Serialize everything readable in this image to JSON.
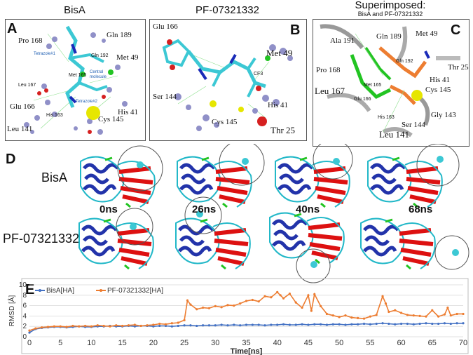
{
  "panels": {
    "A": {
      "letter": "A",
      "title": "BisA"
    },
    "B": {
      "letter": "B",
      "title": "PF-07321332"
    },
    "C": {
      "letter": "C",
      "title_line1": "Superimposed:",
      "title_line2": "BisA and PF-07321332"
    },
    "D": {
      "letter": "D",
      "row1": "BisA",
      "row2": "PF-07321332",
      "times": [
        "0ns",
        "26ns",
        "40ns",
        "68ns"
      ]
    },
    "E": {
      "letter": "E"
    }
  },
  "residues_A": [
    "Pro 168",
    "Gln 189",
    "Gln 192",
    "Leu 167",
    "Met 165",
    "Met 49",
    "Glu 166",
    "His 41",
    "His 163",
    "Cys 145",
    "Leu 141"
  ],
  "residues_A_extra": [
    "Tetrazole#1",
    "Central molecule",
    "Tetrazole#2"
  ],
  "residues_B": [
    "Glu 166",
    "Met 49",
    "Ser 144",
    "His 41",
    "Cys 145",
    "Thr 25",
    "CF3"
  ],
  "residues_C": [
    "Ala 191",
    "Gln 189",
    "Met 49",
    "Gln 192",
    "Pro 168",
    "Thr 25",
    "His 41",
    "Leu 167",
    "Met 165",
    "Glu 166",
    "Cys 145",
    "His 163",
    "Gly 143",
    "Ser 144",
    "Leu 141"
  ],
  "colors": {
    "bisa": "#4472c4",
    "pf": "#ed7d31",
    "grid": "#d9d9d9",
    "ligand": "#3cc8d4",
    "helix": "#2233aa",
    "sheet": "#dd1111",
    "loop": "#22b8c8"
  },
  "chart_data": {
    "type": "line",
    "xlabel": "Time[ns]",
    "ylabel": "RMSD [Å]",
    "xlim": [
      0,
      70
    ],
    "ylim": [
      0,
      10
    ],
    "xticks": [
      0,
      5,
      10,
      15,
      20,
      25,
      30,
      35,
      40,
      45,
      50,
      55,
      60,
      65,
      70
    ],
    "yticks": [
      0,
      2,
      4,
      6,
      8,
      10
    ],
    "grid": true,
    "legend": "top-left",
    "series": [
      {
        "name": "BisA[HA]",
        "color": "#4472c4",
        "x": [
          0,
          1,
          2,
          3,
          4,
          5,
          6,
          7,
          8,
          9,
          10,
          11,
          12,
          13,
          14,
          15,
          16,
          17,
          18,
          19,
          20,
          21,
          22,
          23,
          24,
          25,
          26,
          27,
          28,
          29,
          30,
          31,
          32,
          33,
          34,
          35,
          36,
          37,
          38,
          39,
          40,
          41,
          42,
          43,
          44,
          45,
          46,
          47,
          48,
          49,
          50,
          51,
          52,
          53,
          54,
          55,
          56,
          57,
          58,
          59,
          60,
          61,
          62,
          63,
          64,
          65,
          66,
          67,
          68,
          69,
          70
        ],
        "y": [
          0.8,
          1.5,
          1.7,
          1.8,
          1.9,
          1.9,
          1.8,
          1.9,
          2.0,
          1.9,
          1.9,
          2.0,
          2.0,
          2.1,
          2.0,
          2.0,
          2.1,
          2.0,
          2.1,
          2.1,
          2.0,
          2.1,
          2.1,
          2.0,
          2.1,
          2.2,
          2.2,
          2.1,
          2.2,
          2.2,
          2.2,
          2.3,
          2.2,
          2.3,
          2.2,
          2.3,
          2.3,
          2.3,
          2.2,
          2.3,
          2.3,
          2.4,
          2.3,
          2.3,
          2.4,
          2.3,
          2.4,
          2.4,
          2.3,
          2.4,
          2.4,
          2.3,
          2.4,
          2.4,
          2.5,
          2.4,
          2.5,
          2.6,
          2.5,
          2.4,
          2.5,
          2.5,
          2.4,
          2.5,
          2.6,
          2.5,
          2.5,
          2.6,
          2.5,
          2.6,
          2.6
        ]
      },
      {
        "name": "PF-07321332[HA]",
        "color": "#ed7d31",
        "x": [
          0,
          1,
          2,
          3,
          4,
          5,
          6,
          7,
          8,
          9,
          10,
          11,
          12,
          13,
          14,
          15,
          16,
          17,
          18,
          19,
          20,
          21,
          22,
          23,
          24,
          25,
          25.5,
          26,
          27,
          28,
          29,
          30,
          31,
          32,
          33,
          34,
          35,
          36,
          37,
          38,
          39,
          40,
          40.5,
          41,
          42,
          43,
          44,
          45,
          45.5,
          46,
          47,
          48,
          49,
          50,
          51,
          52,
          53,
          54,
          55,
          56,
          57,
          57.5,
          58,
          59,
          60,
          61,
          62,
          63,
          64,
          65,
          66,
          67,
          67.5,
          68,
          69,
          70
        ],
        "y": [
          1.2,
          1.6,
          1.8,
          1.9,
          2.0,
          2.0,
          1.9,
          2.1,
          2.0,
          2.1,
          2.0,
          2.2,
          2.1,
          2.0,
          2.2,
          2.1,
          2.2,
          2.3,
          2.1,
          2.2,
          2.3,
          2.5,
          2.4,
          2.6,
          2.7,
          3.2,
          7.0,
          6.2,
          5.3,
          5.6,
          5.5,
          5.9,
          5.7,
          6.1,
          6.0,
          6.4,
          6.9,
          7.1,
          6.8,
          7.8,
          7.6,
          8.6,
          8.0,
          7.4,
          8.3,
          6.6,
          5.6,
          8.0,
          5.0,
          8.2,
          5.9,
          4.4,
          4.1,
          3.8,
          4.1,
          3.7,
          3.6,
          3.5,
          3.9,
          4.2,
          7.8,
          6.4,
          4.8,
          5.1,
          4.6,
          4.2,
          4.1,
          4.0,
          3.9,
          5.1,
          3.9,
          4.3,
          5.6,
          4.1,
          4.4,
          4.4
        ]
      }
    ]
  }
}
